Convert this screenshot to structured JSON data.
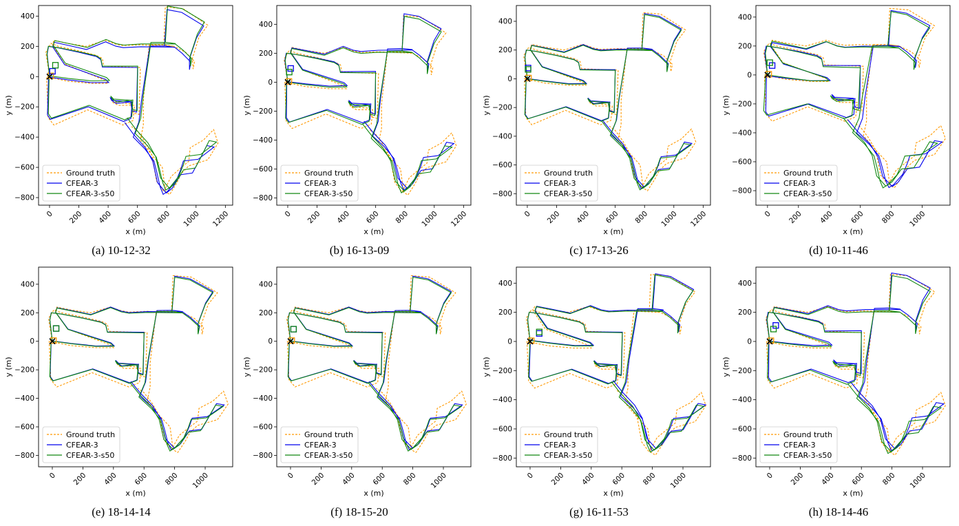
{
  "legend_labels": [
    "Ground truth",
    "CFEAR-3",
    "CFEAR-3-s50"
  ],
  "colors": {
    "ground_truth": "#ff9900",
    "cfear3": "#0000ee",
    "cfear3s50": "#118811",
    "origin": "#000000"
  },
  "chart_data": [
    {
      "type": "line",
      "caption": "(a) 10-12-32",
      "xlabel": "x (m)",
      "ylabel": "y (m)",
      "xlim": [
        -75,
        1250
      ],
      "ylim": [
        -850,
        470
      ],
      "xticks": [
        0,
        200,
        400,
        600,
        800,
        1000,
        1200
      ],
      "yticks": [
        -800,
        -600,
        -400,
        -200,
        0,
        200,
        400
      ],
      "legend": "lower-left",
      "grid": false,
      "series": [
        {
          "name": "Ground truth"
        },
        {
          "name": "CFEAR-3"
        },
        {
          "name": "CFEAR-3-s50"
        }
      ],
      "variant": {
        "b_dx": 10,
        "b_dy": -8,
        "g_dx": 24,
        "g_dy": 18,
        "b_end": [
          20,
          35
        ],
        "g_end": [
          40,
          75
        ],
        "b_rot": 0.01,
        "g_rot": 0.02
      }
    },
    {
      "type": "line",
      "caption": "(b) 16-13-09",
      "xlabel": "x (m)",
      "ylabel": "y (m)",
      "xlim": [
        -75,
        1250
      ],
      "ylim": [
        -850,
        530
      ],
      "xticks": [
        0,
        200,
        400,
        600,
        800,
        1000,
        1200
      ],
      "yticks": [
        -800,
        -600,
        -400,
        -200,
        0,
        200,
        400
      ],
      "legend": "lower-left",
      "grid": false,
      "series": [
        {
          "name": "Ground truth"
        },
        {
          "name": "CFEAR-3"
        },
        {
          "name": "CFEAR-3-s50"
        }
      ],
      "variant": {
        "b_dx": 12,
        "b_dy": 15,
        "g_dx": 5,
        "g_dy": 5,
        "b_end": [
          20,
          95
        ],
        "g_end": [
          10,
          70
        ],
        "b_rot": 0.03,
        "g_rot": 0.015
      }
    },
    {
      "type": "line",
      "caption": "(c) 17-13-26",
      "xlabel": "x (m)",
      "ylabel": "y (m)",
      "xlim": [
        -75,
        1250
      ],
      "ylim": [
        -880,
        510
      ],
      "xticks": [
        0,
        200,
        400,
        600,
        800,
        1000,
        1200
      ],
      "yticks": [
        -800,
        -600,
        -400,
        -200,
        0,
        200,
        400
      ],
      "legend": "lower-left",
      "grid": false,
      "series": [
        {
          "name": "Ground truth"
        },
        {
          "name": "CFEAR-3"
        },
        {
          "name": "CFEAR-3-s50"
        }
      ],
      "variant": {
        "b_dx": 8,
        "b_dy": 8,
        "g_dx": 5,
        "g_dy": 3,
        "b_end": [
          5,
          75
        ],
        "g_end": [
          5,
          65
        ],
        "b_rot": 0.012,
        "g_rot": 0.006
      }
    },
    {
      "type": "line",
      "caption": "(d) 10-11-46",
      "xlabel": "x (m)",
      "ylabel": "y (m)",
      "xlim": [
        -75,
        1180
      ],
      "ylim": [
        -900,
        480
      ],
      "xticks": [
        0,
        200,
        400,
        600,
        800,
        1000
      ],
      "yticks": [
        -800,
        -600,
        -400,
        -200,
        0,
        200,
        400
      ],
      "legend": "lower-left",
      "grid": false,
      "series": [
        {
          "name": "Ground truth"
        },
        {
          "name": "CFEAR-3"
        },
        {
          "name": "CFEAR-3-s50"
        }
      ],
      "variant": {
        "b_dx": 12,
        "b_dy": -18,
        "g_dx": -8,
        "g_dy": 10,
        "b_end": [
          30,
          65
        ],
        "g_end": [
          15,
          85
        ],
        "b_rot": 0.02,
        "g_rot": -0.01
      }
    },
    {
      "type": "line",
      "caption": "(e) 18-14-14",
      "xlabel": "x (m)",
      "ylabel": "y (m)",
      "xlim": [
        -90,
        1180
      ],
      "ylim": [
        -880,
        520
      ],
      "xticks": [
        0,
        200,
        400,
        600,
        800,
        1000
      ],
      "yticks": [
        -800,
        -600,
        -400,
        -200,
        0,
        200,
        400
      ],
      "legend": "lower-left",
      "grid": false,
      "series": [
        {
          "name": "Ground truth"
        },
        {
          "name": "CFEAR-3"
        },
        {
          "name": "CFEAR-3-s50"
        }
      ],
      "variant": {
        "b_dx": 10,
        "b_dy": 12,
        "g_dx": 6,
        "g_dy": 8,
        "b_end": [
          25,
          90
        ],
        "g_end": [
          25,
          90
        ],
        "b_rot": 0.012,
        "g_rot": 0.006
      }
    },
    {
      "type": "line",
      "caption": "(f) 18-15-20",
      "xlabel": "x (m)",
      "ylabel": "y (m)",
      "xlim": [
        -90,
        1180
      ],
      "ylim": [
        -880,
        520
      ],
      "xticks": [
        0,
        200,
        400,
        600,
        800,
        1000
      ],
      "yticks": [
        -800,
        -600,
        -400,
        -200,
        0,
        200,
        400
      ],
      "legend": "lower-left",
      "grid": false,
      "series": [
        {
          "name": "Ground truth"
        },
        {
          "name": "CFEAR-3"
        },
        {
          "name": "CFEAR-3-s50"
        }
      ],
      "variant": {
        "b_dx": 10,
        "b_dy": 12,
        "g_dx": 6,
        "g_dy": 8,
        "b_end": [
          20,
          85
        ],
        "g_end": [
          20,
          85
        ],
        "b_rot": 0.012,
        "g_rot": 0.006
      }
    },
    {
      "type": "line",
      "caption": "(g) 16-11-53",
      "xlabel": "x (m)",
      "ylabel": "y (m)",
      "xlim": [
        -90,
        1180
      ],
      "ylim": [
        -860,
        510
      ],
      "xticks": [
        0,
        200,
        400,
        600,
        800,
        1000
      ],
      "yticks": [
        -800,
        -600,
        -400,
        -200,
        0,
        200,
        400
      ],
      "legend": "lower-left",
      "grid": false,
      "series": [
        {
          "name": "Ground truth"
        },
        {
          "name": "CFEAR-3"
        },
        {
          "name": "CFEAR-3-s50"
        }
      ],
      "variant": {
        "b_dx": 40,
        "b_dy": 28,
        "g_dx": 30,
        "g_dy": 22,
        "b_end": [
          60,
          55
        ],
        "g_end": [
          60,
          65
        ],
        "b_rot": 0.01,
        "g_rot": 0.005
      }
    },
    {
      "type": "line",
      "caption": "(h) 18-14-46",
      "xlabel": "x (m)",
      "ylabel": "y (m)",
      "xlim": [
        -90,
        1180
      ],
      "ylim": [
        -860,
        510
      ],
      "xticks": [
        0,
        200,
        400,
        600,
        800,
        1000
      ],
      "yticks": [
        -800,
        -600,
        -400,
        -200,
        0,
        200,
        400
      ],
      "legend": "lower-left",
      "grid": false,
      "series": [
        {
          "name": "Ground truth"
        },
        {
          "name": "CFEAR-3"
        },
        {
          "name": "CFEAR-3-s50"
        }
      ],
      "variant": {
        "b_dx": 18,
        "b_dy": 10,
        "g_dx": 8,
        "g_dy": 5,
        "b_end": [
          40,
          110
        ],
        "g_end": [
          25,
          85
        ],
        "b_rot": 0.03,
        "g_rot": 0.01
      }
    }
  ]
}
